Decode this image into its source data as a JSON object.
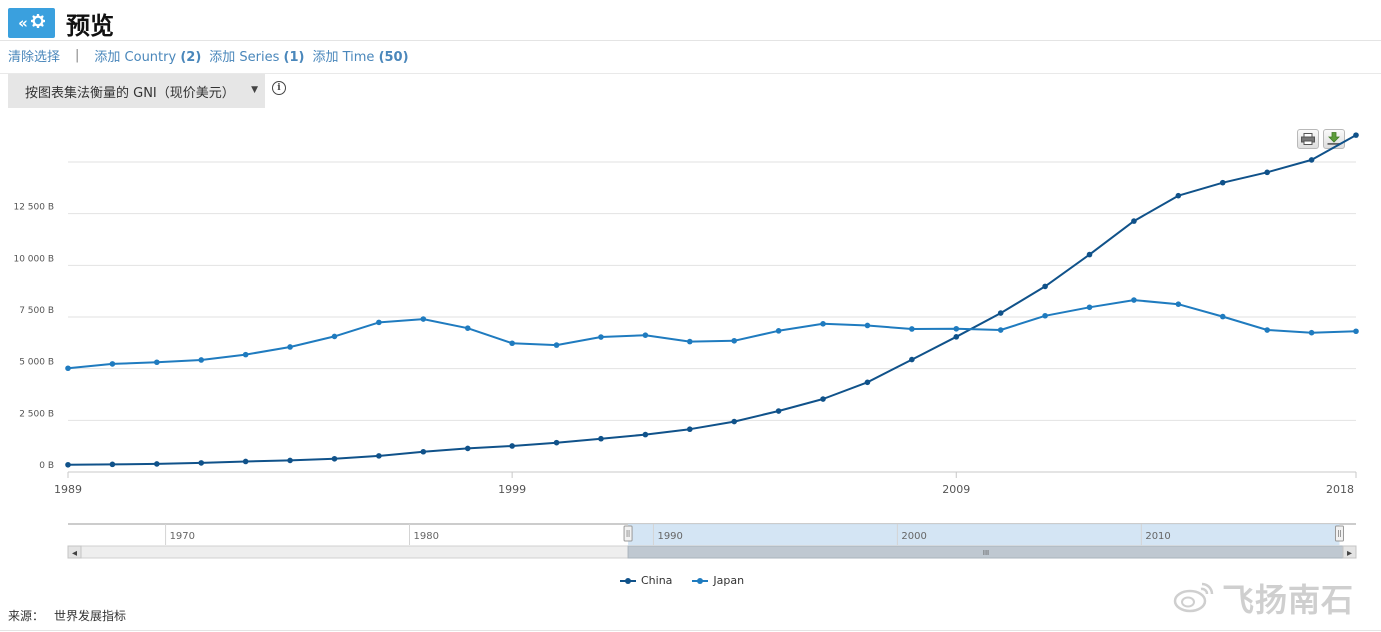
{
  "header": {
    "title": "预览"
  },
  "actions": {
    "clear": "清除选择",
    "separator": "|",
    "add_country": {
      "label": "添加 Country",
      "count": "(2)"
    },
    "add_series": {
      "label": "添加 Series",
      "count": "(1)"
    },
    "add_time": {
      "label": "添加 Time",
      "count": "(50)"
    }
  },
  "series_select": {
    "value": "按图表集法衡量的 GNI（现价美元）",
    "caret": "▼"
  },
  "info_icon": "i",
  "toolbar": {
    "print_icon": "print-icon",
    "download_icon": "download-icon"
  },
  "colors": {
    "china": "#10528a",
    "japan": "#1f7bbf",
    "accent": "#3aa0de",
    "link": "#4a87bb"
  },
  "chart_data": {
    "type": "line",
    "title": "",
    "xlabel": "",
    "ylabel": "",
    "x": [
      1989,
      1990,
      1991,
      1992,
      1993,
      1994,
      1995,
      1996,
      1997,
      1998,
      1999,
      2000,
      2001,
      2002,
      2003,
      2004,
      2005,
      2006,
      2007,
      2008,
      2009,
      2010,
      2011,
      2012,
      2013,
      2014,
      2015,
      2016,
      2017,
      2018
    ],
    "x_ticks": [
      "1989",
      "1999",
      "2009",
      "2018"
    ],
    "y_ticks": [
      "0 B",
      "2 500 B",
      "5 000 B",
      "7 500 B",
      "10 000 B",
      "12 500 B"
    ],
    "ylim": [
      0,
      15000
    ],
    "grid": true,
    "legend": "bottom-center",
    "series": [
      {
        "name": "China",
        "values": [
          350,
          370,
          390,
          440,
          510,
          560,
          640,
          780,
          980,
          1140,
          1260,
          1420,
          1610,
          1810,
          2070,
          2440,
          2950,
          3530,
          4340,
          5440,
          6540,
          7690,
          8980,
          10520,
          12140,
          13370,
          14000,
          14500,
          15100,
          16300
        ]
      },
      {
        "name": "Japan",
        "values": [
          5020,
          5230,
          5310,
          5420,
          5680,
          6050,
          6560,
          7240,
          7400,
          6960,
          6230,
          6140,
          6530,
          6620,
          6310,
          6350,
          6830,
          7170,
          7090,
          6920,
          6930,
          6870,
          7560,
          7970,
          8320,
          8120,
          7520,
          6870,
          6740,
          6810
        ]
      }
    ],
    "navigator": {
      "ticks": [
        "1970",
        "1980",
        "1990",
        "2000",
        "2010"
      ],
      "scroll_grip": "III",
      "left_arrow": "◂",
      "right_arrow": "▸"
    }
  },
  "source": {
    "label": "来源：",
    "value": "世界发展指标"
  },
  "watermark": {
    "text": "飞扬南石"
  }
}
